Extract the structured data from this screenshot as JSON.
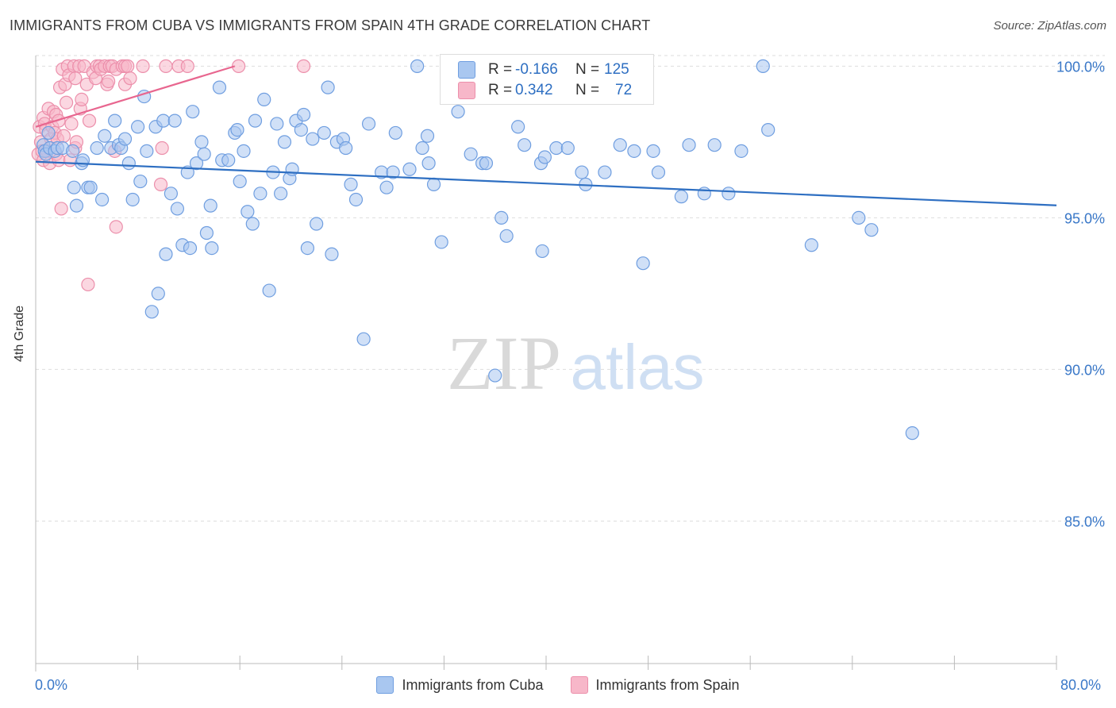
{
  "title": "IMMIGRANTS FROM CUBA VS IMMIGRANTS FROM SPAIN 4TH GRADE CORRELATION CHART",
  "source": "Source: ZipAtlas.com",
  "watermark": {
    "zip": "ZIP",
    "atlas": "atlas"
  },
  "stats": {
    "cuba": {
      "r_label": "R =",
      "r_value": "-0.166",
      "n_label": "N =",
      "n_value": "125"
    },
    "spain": {
      "r_label": "R =",
      "r_value": "0.342",
      "n_label": "N =",
      "n_value": "72"
    }
  },
  "legend": {
    "cuba": "Immigrants from Cuba",
    "spain": "Immigrants from Spain"
  },
  "colors": {
    "cuba_fill": "#a9c7f0",
    "cuba_stroke": "#6f9ee0",
    "cuba_line": "#2e6fc2",
    "spain_fill": "#f7b7c9",
    "spain_stroke": "#ec8fab",
    "spain_line": "#e8668f",
    "axis_text": "#3a78c8",
    "grid": "#dddddd"
  },
  "chart_data": {
    "type": "scatter",
    "title": "IMMIGRANTS FROM CUBA VS IMMIGRANTS FROM SPAIN 4TH GRADE CORRELATION CHART",
    "xlabel": "",
    "ylabel": "4th Grade",
    "xlim": [
      0,
      80
    ],
    "ylim": [
      80.3,
      100.35
    ],
    "x_tick_labels": [
      "0.0%",
      "80.0%"
    ],
    "y_ticks": [
      85,
      90,
      95,
      100
    ],
    "y_tick_labels": [
      "85.0%",
      "90.0%",
      "95.0%",
      "100.0%"
    ],
    "series": [
      {
        "name": "Immigrants from Cuba",
        "trend": {
          "x": [
            0,
            80
          ],
          "y": [
            96.85,
            95.41
          ]
        },
        "points": [
          [
            0.6,
            97.4
          ],
          [
            0.7,
            97.2
          ],
          [
            0.8,
            97.1
          ],
          [
            1.0,
            97.8
          ],
          [
            1.1,
            97.3
          ],
          [
            1.5,
            97.2
          ],
          [
            1.7,
            97.3
          ],
          [
            2.1,
            97.3
          ],
          [
            2.9,
            97.2
          ],
          [
            3.0,
            96.0
          ],
          [
            3.2,
            95.4
          ],
          [
            3.6,
            96.8
          ],
          [
            3.7,
            96.9
          ],
          [
            4.1,
            96.0
          ],
          [
            4.3,
            96.0
          ],
          [
            4.8,
            97.3
          ],
          [
            5.2,
            95.6
          ],
          [
            5.4,
            97.7
          ],
          [
            5.9,
            97.3
          ],
          [
            6.2,
            98.2
          ],
          [
            6.5,
            97.4
          ],
          [
            6.7,
            97.3
          ],
          [
            7.0,
            97.6
          ],
          [
            7.3,
            96.8
          ],
          [
            7.6,
            95.6
          ],
          [
            8.0,
            98.0
          ],
          [
            8.2,
            96.2
          ],
          [
            8.5,
            99.0
          ],
          [
            8.7,
            97.2
          ],
          [
            9.1,
            91.9
          ],
          [
            9.4,
            98.0
          ],
          [
            9.6,
            92.5
          ],
          [
            10.0,
            98.2
          ],
          [
            10.2,
            93.8
          ],
          [
            10.6,
            95.8
          ],
          [
            10.9,
            98.2
          ],
          [
            11.1,
            95.3
          ],
          [
            11.5,
            94.1
          ],
          [
            11.9,
            96.5
          ],
          [
            12.1,
            94.0
          ],
          [
            12.3,
            98.5
          ],
          [
            12.6,
            96.8
          ],
          [
            13.0,
            97.5
          ],
          [
            13.2,
            97.1
          ],
          [
            13.4,
            94.5
          ],
          [
            13.7,
            95.4
          ],
          [
            13.8,
            94.0
          ],
          [
            14.4,
            99.3
          ],
          [
            14.6,
            96.9
          ],
          [
            15.1,
            96.9
          ],
          [
            15.6,
            97.8
          ],
          [
            15.8,
            97.9
          ],
          [
            16.0,
            96.2
          ],
          [
            16.3,
            97.2
          ],
          [
            16.6,
            95.2
          ],
          [
            17.0,
            94.8
          ],
          [
            17.2,
            98.2
          ],
          [
            17.6,
            95.8
          ],
          [
            17.9,
            98.9
          ],
          [
            18.3,
            92.6
          ],
          [
            18.6,
            96.5
          ],
          [
            18.9,
            98.1
          ],
          [
            19.2,
            95.8
          ],
          [
            19.5,
            97.5
          ],
          [
            19.9,
            96.3
          ],
          [
            20.1,
            96.6
          ],
          [
            20.4,
            98.2
          ],
          [
            20.8,
            97.9
          ],
          [
            21.0,
            98.4
          ],
          [
            21.3,
            94.0
          ],
          [
            21.7,
            97.6
          ],
          [
            22.0,
            94.8
          ],
          [
            22.6,
            97.8
          ],
          [
            22.9,
            99.3
          ],
          [
            23.2,
            93.8
          ],
          [
            23.6,
            97.5
          ],
          [
            24.1,
            97.6
          ],
          [
            24.3,
            97.3
          ],
          [
            24.7,
            96.1
          ],
          [
            25.1,
            95.6
          ],
          [
            25.7,
            91.0
          ],
          [
            26.1,
            98.1
          ],
          [
            27.1,
            96.5
          ],
          [
            27.5,
            96.0
          ],
          [
            28.0,
            96.5
          ],
          [
            28.2,
            97.8
          ],
          [
            29.3,
            96.6
          ],
          [
            29.9,
            100.0
          ],
          [
            30.3,
            97.3
          ],
          [
            30.8,
            96.8
          ],
          [
            30.7,
            97.7
          ],
          [
            31.2,
            96.1
          ],
          [
            31.8,
            94.2
          ],
          [
            33.1,
            98.5
          ],
          [
            34.1,
            97.1
          ],
          [
            35.0,
            96.8
          ],
          [
            35.3,
            96.8
          ],
          [
            36.0,
            89.8
          ],
          [
            36.5,
            95.0
          ],
          [
            36.9,
            94.4
          ],
          [
            37.8,
            98.0
          ],
          [
            38.3,
            97.4
          ],
          [
            39.6,
            96.8
          ],
          [
            39.7,
            93.9
          ],
          [
            39.9,
            97.0
          ],
          [
            40.8,
            97.3
          ],
          [
            41.7,
            97.3
          ],
          [
            42.8,
            96.5
          ],
          [
            43.1,
            96.1
          ],
          [
            44.6,
            96.5
          ],
          [
            45.8,
            97.4
          ],
          [
            46.9,
            97.2
          ],
          [
            47.6,
            93.5
          ],
          [
            48.4,
            97.2
          ],
          [
            48.8,
            96.5
          ],
          [
            50.6,
            95.7
          ],
          [
            51.2,
            97.4
          ],
          [
            52.4,
            95.8
          ],
          [
            53.2,
            97.4
          ],
          [
            54.3,
            95.8
          ],
          [
            55.3,
            97.2
          ],
          [
            57.0,
            100.0
          ],
          [
            57.4,
            97.9
          ],
          [
            60.8,
            94.1
          ],
          [
            64.5,
            95.0
          ],
          [
            65.5,
            94.6
          ],
          [
            68.7,
            87.9
          ]
        ]
      },
      {
        "name": "Immigrants from Spain",
        "trend": {
          "x": [
            0,
            15.6
          ],
          "y": [
            98.0,
            100.0
          ]
        },
        "points": [
          [
            0.2,
            97.1
          ],
          [
            0.3,
            98.0
          ],
          [
            0.4,
            97.5
          ],
          [
            0.5,
            97.2
          ],
          [
            0.6,
            96.9
          ],
          [
            0.6,
            98.3
          ],
          [
            0.7,
            98.1
          ],
          [
            0.8,
            97.9
          ],
          [
            0.9,
            97.2
          ],
          [
            1.0,
            98.6
          ],
          [
            1.1,
            96.8
          ],
          [
            1.2,
            97.6
          ],
          [
            1.3,
            98.0
          ],
          [
            1.4,
            98.5
          ],
          [
            1.5,
            97.8
          ],
          [
            1.6,
            98.4
          ],
          [
            1.6,
            97.1
          ],
          [
            1.7,
            97.6
          ],
          [
            1.8,
            98.2
          ],
          [
            1.8,
            96.9
          ],
          [
            1.9,
            99.3
          ],
          [
            2.0,
            95.3
          ],
          [
            2.1,
            99.9
          ],
          [
            2.2,
            97.7
          ],
          [
            2.3,
            99.4
          ],
          [
            2.4,
            98.8
          ],
          [
            2.5,
            100.0
          ],
          [
            2.6,
            99.7
          ],
          [
            2.7,
            96.9
          ],
          [
            2.8,
            98.1
          ],
          [
            3.0,
            100.0
          ],
          [
            3.1,
            99.6
          ],
          [
            3.1,
            97.3
          ],
          [
            3.2,
            97.5
          ],
          [
            3.4,
            100.0
          ],
          [
            3.5,
            98.6
          ],
          [
            3.6,
            98.9
          ],
          [
            3.8,
            100.0
          ],
          [
            4.0,
            99.4
          ],
          [
            4.1,
            92.8
          ],
          [
            4.2,
            98.2
          ],
          [
            4.5,
            99.8
          ],
          [
            4.7,
            99.6
          ],
          [
            4.8,
            100.0
          ],
          [
            5.0,
            100.0
          ],
          [
            5.1,
            99.9
          ],
          [
            5.4,
            100.0
          ],
          [
            5.6,
            99.4
          ],
          [
            5.7,
            99.5
          ],
          [
            5.8,
            100.0
          ],
          [
            6.0,
            100.0
          ],
          [
            6.2,
            97.2
          ],
          [
            6.3,
            99.9
          ],
          [
            6.3,
            94.7
          ],
          [
            6.8,
            100.0
          ],
          [
            7.0,
            99.4
          ],
          [
            7.0,
            100.0
          ],
          [
            7.2,
            100.0
          ],
          [
            7.4,
            99.6
          ],
          [
            8.4,
            100.0
          ],
          [
            9.8,
            96.1
          ],
          [
            9.9,
            97.3
          ],
          [
            10.2,
            100.0
          ],
          [
            11.2,
            100.0
          ],
          [
            11.9,
            100.0
          ],
          [
            15.9,
            100.0
          ],
          [
            21.0,
            100.0
          ]
        ]
      }
    ]
  }
}
